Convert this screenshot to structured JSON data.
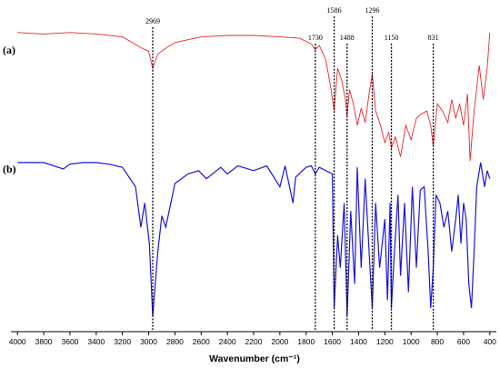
{
  "chart_data": {
    "type": "line",
    "title": "",
    "xlabel": "Wavenumber (cm⁻¹)",
    "ylabel": "",
    "xlim": [
      4050,
      350
    ],
    "x_ticks": [
      4000,
      3800,
      3600,
      3400,
      3200,
      3000,
      2800,
      2600,
      2400,
      2200,
      2000,
      1800,
      1600,
      1400,
      1200,
      1000,
      800,
      600,
      400
    ],
    "peak_lines": [
      {
        "x": 2969,
        "label": "2969"
      },
      {
        "x": 1730,
        "label": "1730"
      },
      {
        "x": 1586,
        "label": "1586"
      },
      {
        "x": 1488,
        "label": "1488"
      },
      {
        "x": 1296,
        "label": "1296"
      },
      {
        "x": 1150,
        "label": "1150"
      },
      {
        "x": 831,
        "label": "831"
      }
    ],
    "series": [
      {
        "name": "(a)",
        "color": "#e8262b",
        "x": [
          4000,
          3800,
          3600,
          3400,
          3200,
          3050,
          3000,
          2969,
          2930,
          2870,
          2800,
          2600,
          2400,
          2200,
          2000,
          1850,
          1760,
          1730,
          1700,
          1650,
          1610,
          1586,
          1560,
          1530,
          1500,
          1488,
          1470,
          1440,
          1410,
          1380,
          1350,
          1320,
          1296,
          1270,
          1240,
          1200,
          1170,
          1150,
          1120,
          1080,
          1040,
          1000,
          960,
          920,
          880,
          850,
          831,
          800,
          760,
          720,
          690,
          660,
          630,
          600,
          570,
          550,
          520,
          480,
          450,
          420,
          400
        ],
        "y": [
          0.95,
          0.94,
          0.95,
          0.94,
          0.92,
          0.84,
          0.82,
          0.7,
          0.8,
          0.84,
          0.88,
          0.92,
          0.93,
          0.93,
          0.92,
          0.91,
          0.87,
          0.83,
          0.86,
          0.76,
          0.55,
          0.4,
          0.7,
          0.62,
          0.48,
          0.36,
          0.55,
          0.45,
          0.3,
          0.42,
          0.32,
          0.52,
          0.66,
          0.4,
          0.32,
          0.18,
          0.25,
          0.14,
          0.22,
          0.08,
          0.3,
          0.2,
          0.35,
          0.38,
          0.4,
          0.3,
          0.15,
          0.45,
          0.4,
          0.32,
          0.48,
          0.35,
          0.45,
          0.3,
          0.52,
          0.05,
          0.4,
          0.72,
          0.48,
          0.7,
          0.95
        ]
      },
      {
        "name": "(b)",
        "color": "#1a16d8",
        "x": [
          4000,
          3800,
          3650,
          3600,
          3500,
          3400,
          3300,
          3200,
          3100,
          3060,
          3030,
          2995,
          2969,
          2930,
          2900,
          2870,
          2800,
          2700,
          2620,
          2560,
          2450,
          2400,
          2320,
          2200,
          2100,
          2000,
          1960,
          1900,
          1880,
          1800,
          1760,
          1730,
          1700,
          1650,
          1600,
          1586,
          1560,
          1540,
          1510,
          1488,
          1460,
          1430,
          1410,
          1380,
          1350,
          1320,
          1296,
          1270,
          1240,
          1200,
          1180,
          1160,
          1150,
          1130,
          1100,
          1080,
          1050,
          1020,
          990,
          960,
          930,
          900,
          870,
          850,
          831,
          810,
          780,
          750,
          720,
          690,
          660,
          640,
          620,
          600,
          580,
          560,
          540,
          520,
          500,
          470,
          440,
          420,
          400
        ],
        "y": [
          0.95,
          0.95,
          0.91,
          0.94,
          0.95,
          0.95,
          0.94,
          0.92,
          0.8,
          0.55,
          0.7,
          0.45,
          0.0,
          0.4,
          0.62,
          0.55,
          0.82,
          0.88,
          0.9,
          0.85,
          0.92,
          0.88,
          0.93,
          0.9,
          0.93,
          0.8,
          0.93,
          0.7,
          0.86,
          0.92,
          0.93,
          0.88,
          0.92,
          0.9,
          0.88,
          0.05,
          0.5,
          0.3,
          0.7,
          0.0,
          0.65,
          0.2,
          0.92,
          0.3,
          0.85,
          0.4,
          0.05,
          0.7,
          0.3,
          0.6,
          0.1,
          0.7,
          0.05,
          0.35,
          0.75,
          0.25,
          0.7,
          0.15,
          0.8,
          0.3,
          0.78,
          0.8,
          0.4,
          0.05,
          0.3,
          0.75,
          0.7,
          0.55,
          0.65,
          0.4,
          0.6,
          0.75,
          0.45,
          0.7,
          0.6,
          0.2,
          0.05,
          0.4,
          0.8,
          0.95,
          0.8,
          0.9,
          0.85
        ]
      }
    ]
  }
}
